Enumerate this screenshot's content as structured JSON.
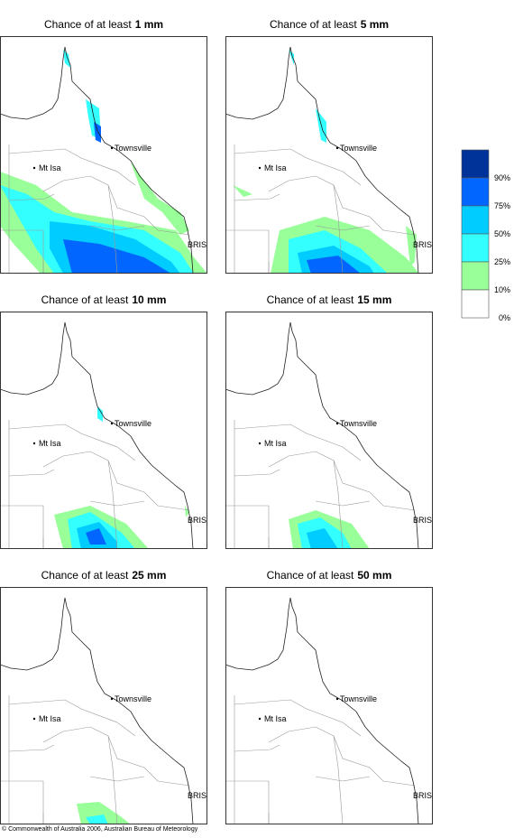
{
  "panels": [
    {
      "title_prefix": "Chance of at least",
      "title_amount": "1 mm"
    },
    {
      "title_prefix": "Chance of at least",
      "title_amount": "5 mm"
    },
    {
      "title_prefix": "Chance of at least",
      "title_amount": "10 mm"
    },
    {
      "title_prefix": "Chance of at least",
      "title_amount": "15 mm"
    },
    {
      "title_prefix": "Chance of at least",
      "title_amount": "25 mm"
    },
    {
      "title_prefix": "Chance of at least",
      "title_amount": "50 mm"
    }
  ],
  "places": [
    "Townsville",
    "Mt Isa",
    "BRIS"
  ],
  "legend": [
    {
      "label": "90%",
      "color": "#00339a"
    },
    {
      "label": "75%",
      "color": "#0066ff"
    },
    {
      "label": "50%",
      "color": "#00ccff"
    },
    {
      "label": "25%",
      "color": "#33ffff"
    },
    {
      "label": "10%",
      "color": "#99ff99"
    },
    {
      "label": "0%",
      "color": "#ffffff"
    }
  ],
  "footer": "© Commonwealth of Australia 2006, Australian Bureau of Meteorology"
}
